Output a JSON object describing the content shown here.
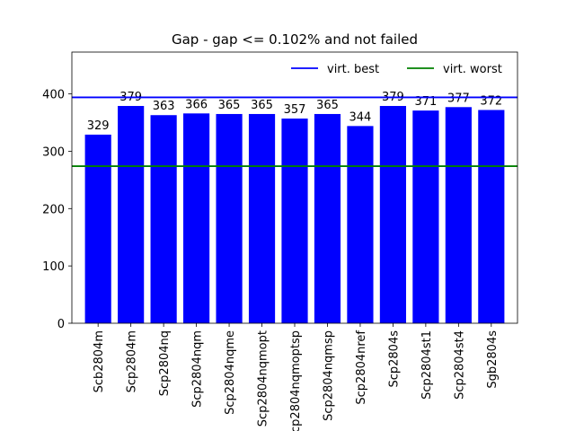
{
  "chart_data": {
    "type": "bar",
    "title": "Gap - gap <= 0.102% and not failed",
    "xlabel": "",
    "ylabel": "",
    "categories": [
      "Scb2804m",
      "Scp2804m",
      "Scp2804nq",
      "Scp2804nqm",
      "Scp2804nqme",
      "Scp2804nqmopt",
      "Scp2804nqmoptsp",
      "Scp2804nqmsp",
      "Scp2804nref",
      "Scp2804s",
      "Scp2804st1",
      "Scp2804st4",
      "Sgb2804s"
    ],
    "values": [
      329,
      379,
      363,
      366,
      365,
      365,
      357,
      365,
      344,
      379,
      371,
      377,
      372
    ],
    "bar_color": "#0000ff",
    "ylim": [
      0,
      473
    ],
    "yticks": [
      0,
      100,
      200,
      300,
      400
    ],
    "grid": false,
    "reference_lines": [
      {
        "name": "virt. best",
        "value": 394,
        "color": "#0000ff"
      },
      {
        "name": "virt. worst",
        "value": 274,
        "color": "#008000"
      }
    ],
    "legend": {
      "placement": "top-right",
      "entries": [
        "virt. best",
        "virt. worst"
      ]
    }
  }
}
